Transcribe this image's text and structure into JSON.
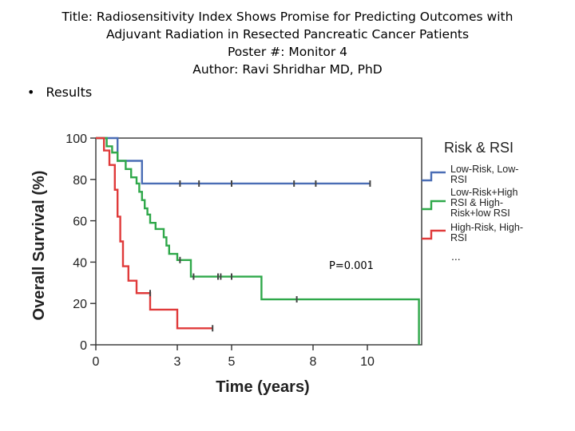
{
  "slide": {
    "title_lines": [
      "Title: Radiosensitivity Index Shows Promise for Predicting Outcomes with",
      "Adjuvant Radiation in Resected Pancreatic Cancer Patients",
      "Poster #: Monitor 4",
      "Author: Ravi Shridhar MD, PhD"
    ],
    "bullet_marker": "•",
    "bullet_text": "Results"
  },
  "chart_data": {
    "type": "line",
    "subtype": "kaplan-meier step",
    "title": "",
    "xlabel": "Time (years)",
    "ylabel": "Overall Survival (%)",
    "xlim": [
      0,
      12
    ],
    "ylim": [
      0,
      100
    ],
    "x_ticks": [
      0,
      3,
      5,
      8,
      10
    ],
    "y_ticks": [
      0,
      20,
      40,
      60,
      80,
      100
    ],
    "annotation": "P=0.001",
    "legend": {
      "title": "Risk & RSI",
      "placement": "right",
      "entries": [
        "Low-Risk, Low-RSI",
        "Low-Risk+High RSI & High-Risk+low RSI",
        "High-Risk, High-RSI"
      ],
      "more": "..."
    },
    "series": [
      {
        "name": "Low-Risk, Low-RSI",
        "color": "#4a6db5",
        "steps": [
          [
            0,
            100
          ],
          [
            0.8,
            89
          ],
          [
            1.7,
            78
          ],
          [
            10.1,
            78
          ]
        ],
        "censors": [
          [
            3.1,
            78
          ],
          [
            3.8,
            78
          ],
          [
            5.0,
            78
          ],
          [
            7.3,
            78
          ],
          [
            8.1,
            78
          ],
          [
            10.1,
            78
          ]
        ]
      },
      {
        "name": "Low-Risk+High RSI & High-Risk+low RSI",
        "color": "#2fa84a",
        "steps": [
          [
            0,
            100
          ],
          [
            0.4,
            96
          ],
          [
            0.6,
            93
          ],
          [
            0.8,
            89
          ],
          [
            1.1,
            85
          ],
          [
            1.3,
            81
          ],
          [
            1.5,
            78
          ],
          [
            1.6,
            74
          ],
          [
            1.7,
            70
          ],
          [
            1.8,
            66
          ],
          [
            1.9,
            63
          ],
          [
            2.0,
            59
          ],
          [
            2.2,
            56
          ],
          [
            2.5,
            52
          ],
          [
            2.6,
            48
          ],
          [
            2.7,
            44
          ],
          [
            3.0,
            41
          ],
          [
            3.5,
            33
          ],
          [
            6.1,
            22
          ],
          [
            11.9,
            0
          ]
        ],
        "censors": [
          [
            3.1,
            41
          ],
          [
            3.6,
            33
          ],
          [
            4.5,
            33
          ],
          [
            4.6,
            33
          ],
          [
            5.0,
            33
          ],
          [
            7.4,
            22
          ]
        ]
      },
      {
        "name": "High-Risk, High-RSI",
        "color": "#e03a3a",
        "steps": [
          [
            0,
            100
          ],
          [
            0.3,
            94
          ],
          [
            0.5,
            87
          ],
          [
            0.7,
            75
          ],
          [
            0.8,
            62
          ],
          [
            0.9,
            50
          ],
          [
            1.0,
            38
          ],
          [
            1.2,
            31
          ],
          [
            1.5,
            25
          ],
          [
            2.0,
            17
          ],
          [
            3.0,
            8
          ],
          [
            4.3,
            8
          ]
        ],
        "censors": [
          [
            2.0,
            25
          ],
          [
            4.3,
            8
          ]
        ]
      }
    ]
  }
}
